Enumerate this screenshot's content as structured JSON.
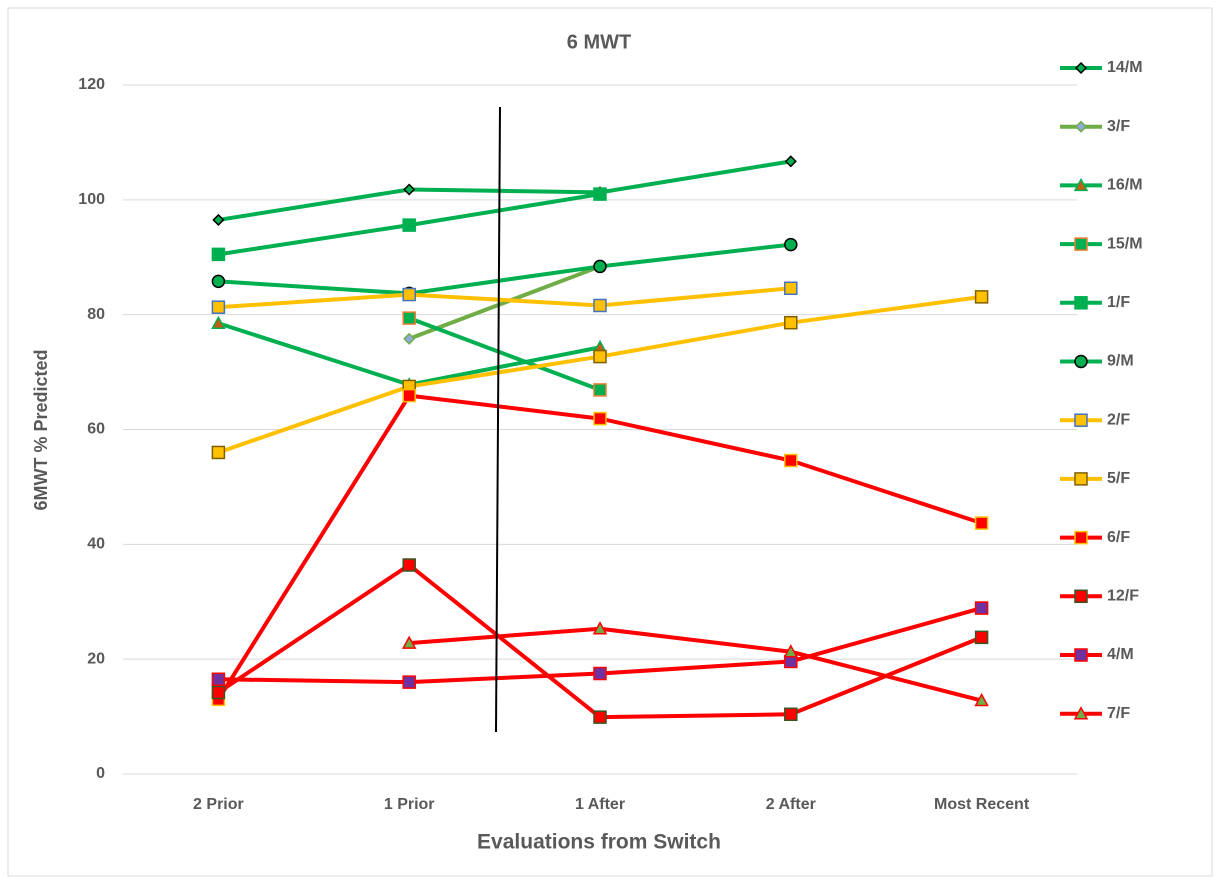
{
  "chart_data": {
    "type": "line",
    "title": "6 MWT",
    "x_label": "Evaluations from Switch",
    "y_label": "6MWT % Predicted",
    "categories": [
      "2 Prior",
      "1 Prior",
      "1 After",
      "2 After",
      "Most Recent"
    ],
    "ylim": [
      0,
      120
    ],
    "yticks": [
      0,
      20,
      40,
      60,
      80,
      100,
      120
    ],
    "grid": true,
    "legend": "right",
    "series": [
      {
        "name": "14/M",
        "color": "#00b050",
        "marker": "diamond",
        "marker_fill": "#00b050",
        "marker_edge": "#000000",
        "values": [
          96.5,
          101.8,
          101.3,
          106.7,
          null
        ]
      },
      {
        "name": "3/F",
        "color": "#70ad47",
        "marker": "diamond",
        "marker_fill": "#8faadc",
        "marker_edge": "#70ad47",
        "values": [
          null,
          75.8,
          88.4,
          null,
          null
        ]
      },
      {
        "name": "16/M",
        "color": "#00b050",
        "marker": "triangle",
        "marker_fill": "#c55a11",
        "marker_edge": "#00b050",
        "values": [
          78.5,
          67.8,
          74.3,
          null,
          null
        ]
      },
      {
        "name": "15/M",
        "color": "#00b050",
        "marker": "square",
        "marker_fill": "#00b050",
        "marker_edge": "#ed7d31",
        "values": [
          null,
          79.4,
          66.9,
          null,
          null
        ]
      },
      {
        "name": "1/F",
        "color": "#00b050",
        "marker": "square",
        "marker_fill": "#00b050",
        "marker_edge": "#00b050",
        "values": [
          90.5,
          95.6,
          101.0,
          null,
          null
        ]
      },
      {
        "name": "9/M",
        "color": "#00b050",
        "marker": "circle",
        "marker_fill": "#00b050",
        "marker_edge": "#000000",
        "values": [
          85.8,
          83.7,
          88.4,
          92.2,
          null
        ]
      },
      {
        "name": "2/F",
        "color": "#ffc000",
        "marker": "square",
        "marker_fill": "#ffc000",
        "marker_edge": "#4472c4",
        "values": [
          81.3,
          83.5,
          81.6,
          84.6,
          null
        ]
      },
      {
        "name": "5/F",
        "color": "#ffc000",
        "marker": "square",
        "marker_fill": "#ffc000",
        "marker_edge": "#7f6000",
        "values": [
          56.0,
          67.5,
          72.7,
          78.6,
          83.1
        ]
      },
      {
        "name": "6/F",
        "color": "#ff0000",
        "marker": "square",
        "marker_fill": "#ff0000",
        "marker_edge": "#ffc000",
        "values": [
          13.0,
          65.9,
          61.9,
          54.6,
          43.7
        ]
      },
      {
        "name": "12/F",
        "color": "#ff0000",
        "marker": "square",
        "marker_fill": "#ff0000",
        "marker_edge": "#375623",
        "values": [
          14.2,
          36.4,
          9.9,
          10.4,
          23.8
        ]
      },
      {
        "name": "4/M",
        "color": "#ff0000",
        "marker": "square",
        "marker_fill": "#7030a0",
        "marker_edge": "#ff0000",
        "values": [
          16.5,
          16.0,
          17.5,
          19.6,
          28.9
        ]
      },
      {
        "name": "7/F",
        "color": "#ff0000",
        "marker": "triangle",
        "marker_fill": "#70ad47",
        "marker_edge": "#ff0000",
        "values": [
          null,
          22.8,
          25.3,
          21.3,
          12.8
        ]
      }
    ]
  }
}
